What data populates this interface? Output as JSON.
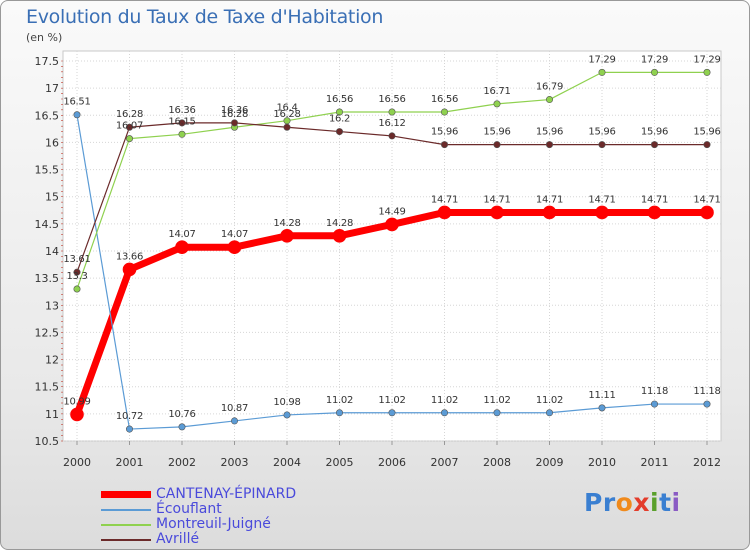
{
  "header": {
    "title": "Evolution du Taux de Taxe d'Habitation",
    "subtitle": "(en %)"
  },
  "logo": {
    "letters": [
      "P",
      "r",
      "o",
      "x",
      "i",
      "t",
      "i"
    ],
    "colors": [
      "#3a7fd1",
      "#3a7fd1",
      "#f08a1c",
      "#e33c2b",
      "#5aa02c",
      "#3a7fd1",
      "#8a5bc4"
    ]
  },
  "chart_data": {
    "type": "line",
    "title": "Evolution du Taux de Taxe d'Habitation",
    "ylabel": "(en %)",
    "xlabel": "",
    "x": [
      "2000",
      "2001",
      "2002",
      "2003",
      "2004",
      "2005",
      "2006",
      "2007",
      "2008",
      "2009",
      "2010",
      "2011",
      "2012"
    ],
    "ylim": [
      10.5,
      17.5
    ],
    "yticks": [
      "10.5",
      "11",
      "11.5",
      "12",
      "12.5",
      "13",
      "13.5",
      "14",
      "14.5",
      "15",
      "15.5",
      "16",
      "16.5",
      "17",
      "17.5"
    ],
    "grid": true,
    "legend": "bottom-left",
    "series": [
      {
        "name": "CANTENAY-ÉPINARD",
        "color": "#ff0000",
        "values": [
          10.99,
          13.66,
          14.07,
          14.07,
          14.28,
          14.28,
          14.49,
          14.71,
          14.71,
          14.71,
          14.71,
          14.71,
          14.71
        ],
        "labels": [
          "10.99",
          "13.66",
          "14.07",
          "14.07",
          "14.28",
          "14.28",
          "14.49",
          "14.71",
          "14.71",
          "14.71",
          "14.71",
          "14.71",
          "14.71"
        ]
      },
      {
        "name": "Écouflant",
        "color": "#5b9bd5",
        "values": [
          16.51,
          10.72,
          10.76,
          10.87,
          10.98,
          11.02,
          11.02,
          11.02,
          11.02,
          11.02,
          11.11,
          11.18,
          11.18
        ],
        "labels": [
          "16.51",
          "10.72",
          "10.76",
          "10.87",
          "10.98",
          "11.02",
          "11.02",
          "11.02",
          "11.02",
          "11.02",
          "11.11",
          "11.18",
          "11.18"
        ]
      },
      {
        "name": "Montreuil-Juigné",
        "color": "#8fd14f",
        "values": [
          13.3,
          16.07,
          16.15,
          16.28,
          16.4,
          16.56,
          16.56,
          16.56,
          16.71,
          16.79,
          17.29,
          17.29,
          17.29
        ],
        "labels": [
          "13.3",
          "16.07",
          "16.15",
          "16.28",
          "16.4",
          "16.56",
          "16.56",
          "16.56",
          "16.71",
          "16.79",
          "17.29",
          "17.29",
          "17.29"
        ]
      },
      {
        "name": "Avrillé",
        "color": "#6b2a2a",
        "values": [
          13.61,
          16.28,
          16.36,
          16.36,
          16.28,
          16.2,
          16.12,
          15.96,
          15.96,
          15.96,
          15.96,
          15.96,
          15.96
        ],
        "labels": [
          "13.61",
          "16.28",
          "16.36",
          "16.36",
          "16.28",
          "16.2",
          "16.12",
          "15.96",
          "15.96",
          "15.96",
          "15.96",
          "15.96",
          "15.96"
        ]
      }
    ]
  }
}
